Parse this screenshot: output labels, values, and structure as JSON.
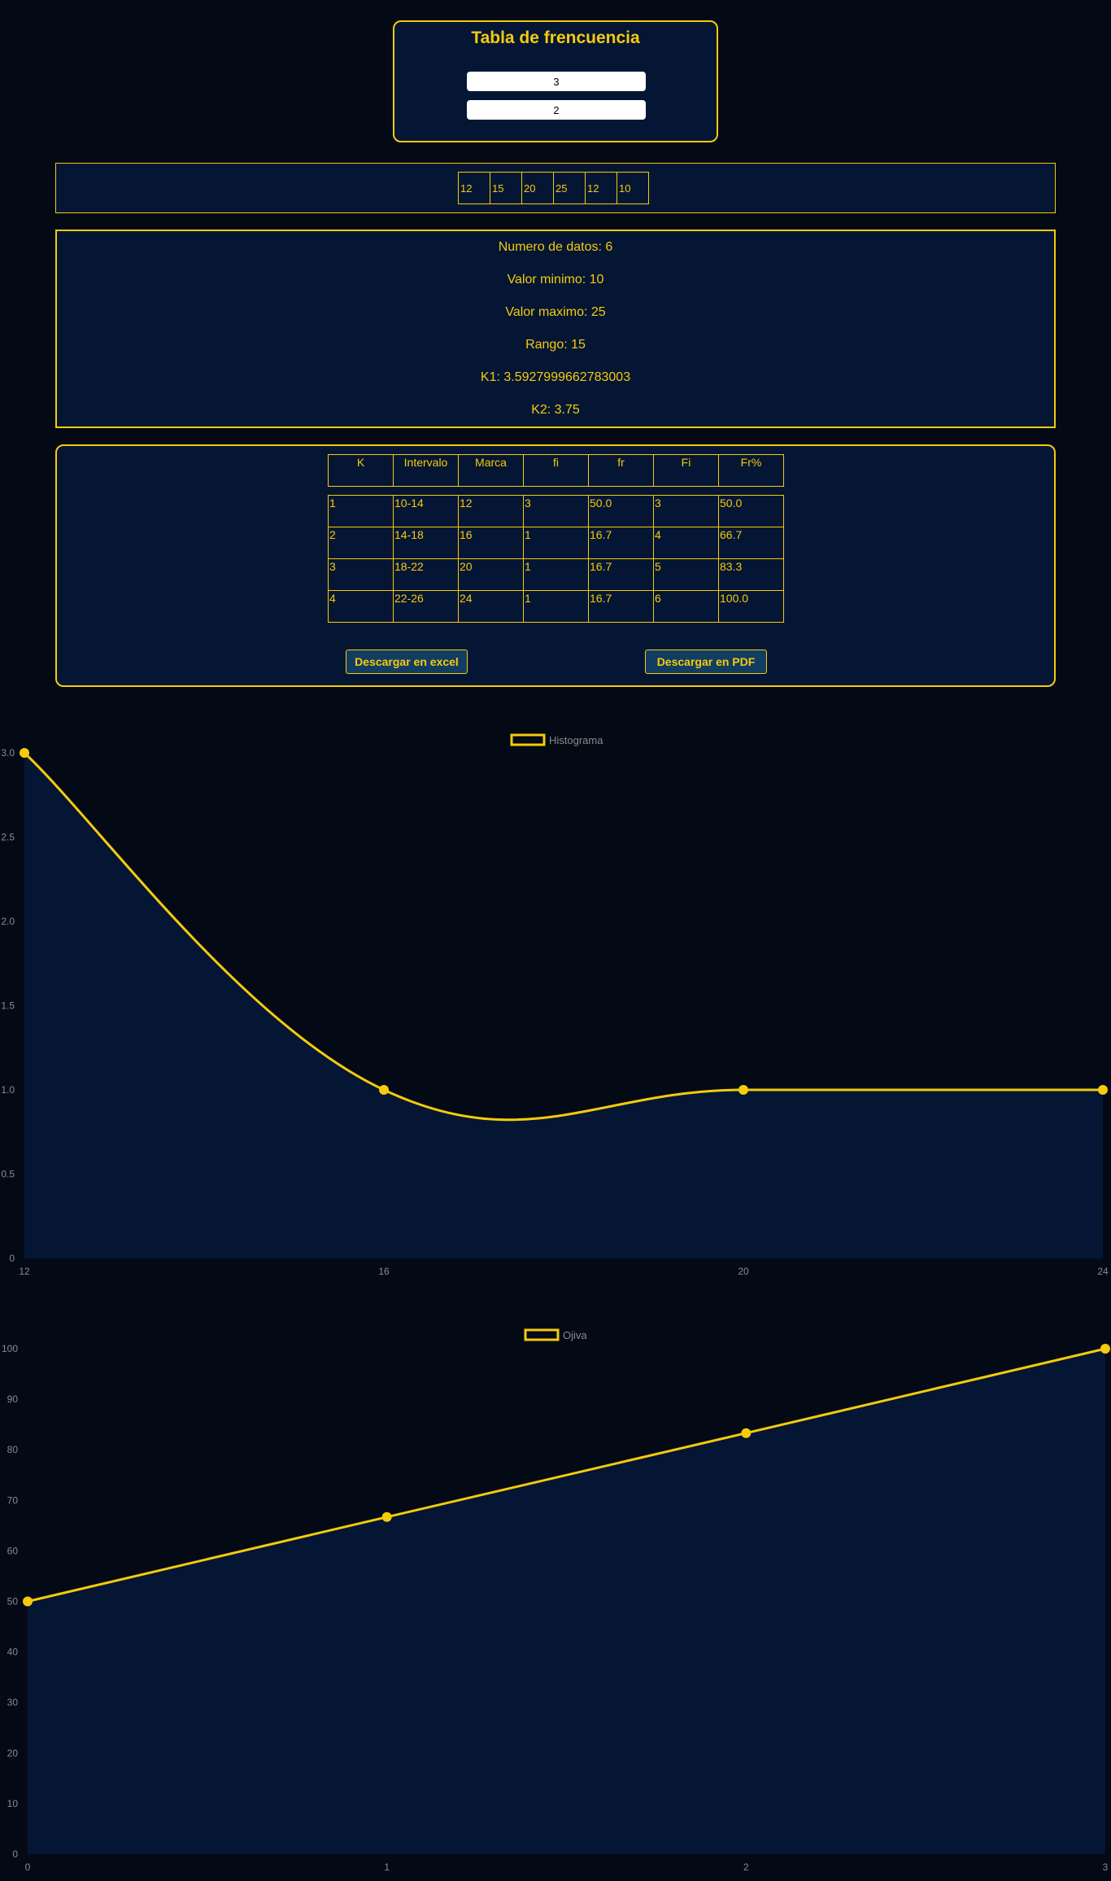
{
  "form": {
    "title": "Tabla de frencuencia",
    "input1_value": "3",
    "input2_value": "2"
  },
  "data_values": [
    "12",
    "15",
    "20",
    "25",
    "12",
    "10"
  ],
  "stats": {
    "numero_datos": "Numero de datos: 6",
    "valor_minimo": "Valor minimo: 10",
    "valor_maximo": "Valor maximo: 25",
    "rango": "Rango: 15",
    "k1": "K1: 3.5927999662783003",
    "k2": "K2: 3.75"
  },
  "table": {
    "headers": [
      "K",
      "Intervalo",
      "Marca",
      "fi",
      "fr",
      "Fi",
      "Fr%"
    ],
    "rows": [
      [
        "1",
        "10-14",
        "12",
        "3",
        "50.0",
        "3",
        "50.0"
      ],
      [
        "2",
        "14-18",
        "16",
        "1",
        "16.7",
        "4",
        "66.7"
      ],
      [
        "3",
        "18-22",
        "20",
        "1",
        "16.7",
        "5",
        "83.3"
      ],
      [
        "4",
        "22-26",
        "24",
        "1",
        "16.7",
        "6",
        "100.0"
      ]
    ]
  },
  "buttons": {
    "excel": "Descargar en excel",
    "pdf": "Descargar en PDF"
  },
  "colors": {
    "accent": "#f5cb0b",
    "panel_bg": "#041634",
    "page_bg": "#030a16",
    "button_bg": "#123d63"
  },
  "chart_data": [
    {
      "type": "line",
      "legend": "Histograma",
      "x": [
        "12",
        "16",
        "20",
        "24"
      ],
      "values": [
        3,
        1,
        1,
        1
      ],
      "ylim": [
        0,
        3
      ],
      "yticks": [
        "0",
        "0.5",
        "1.0",
        "1.5",
        "2.0",
        "2.5",
        "3.0"
      ],
      "fill": true,
      "smooth": true
    },
    {
      "type": "line",
      "legend": "Ojiva",
      "x": [
        "0",
        "1",
        "2",
        "3"
      ],
      "values": [
        50,
        66.7,
        83.3,
        100
      ],
      "ylim": [
        0,
        100
      ],
      "yticks": [
        "0",
        "10",
        "20",
        "30",
        "40",
        "50",
        "60",
        "70",
        "80",
        "90",
        "100"
      ],
      "fill": true,
      "smooth": false
    }
  ]
}
